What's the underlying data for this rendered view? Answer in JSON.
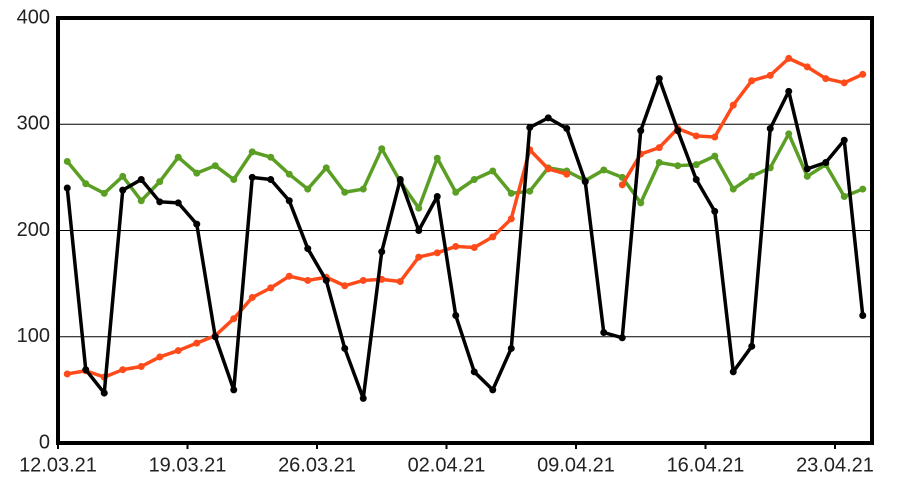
{
  "chart_data": {
    "type": "line",
    "categories": [
      "12.03.21",
      null,
      null,
      null,
      null,
      null,
      null,
      "19.03.21",
      null,
      null,
      null,
      null,
      null,
      null,
      "26.03.21",
      null,
      null,
      null,
      null,
      null,
      null,
      "02.04.21",
      null,
      null,
      null,
      null,
      null,
      null,
      "09.04.21",
      null,
      null,
      null,
      null,
      null,
      null,
      "16.04.21",
      null,
      null,
      null,
      null,
      null,
      null,
      "23.04.21",
      null
    ],
    "series": [
      {
        "color": "#5a9e23",
        "values": [
          265,
          244,
          235,
          251,
          228,
          246,
          269,
          254,
          261,
          248,
          274,
          269,
          253,
          239,
          259,
          236,
          239,
          277,
          246,
          221,
          268,
          236,
          248,
          256,
          235,
          237,
          259,
          256,
          247,
          257,
          250,
          226,
          264,
          261,
          262,
          270,
          239,
          251,
          259,
          291,
          251,
          262,
          232,
          239
        ]
      },
      {
        "color": "#ff4a1a",
        "values": [
          65,
          68,
          62,
          69,
          72,
          81,
          87,
          94,
          101,
          117,
          137,
          146,
          157,
          153,
          156,
          148,
          153,
          154,
          152,
          175,
          179,
          185,
          184,
          194,
          211,
          276,
          258,
          253,
          null,
          null,
          243,
          272,
          278,
          296,
          289,
          288,
          318,
          341,
          346,
          362,
          354,
          343,
          339,
          347
        ]
      },
      {
        "color": "#000000",
        "values": [
          240,
          69,
          47,
          238,
          248,
          227,
          226,
          206,
          100,
          50,
          250,
          248,
          228,
          183,
          153,
          89,
          42,
          180,
          248,
          200,
          232,
          120,
          67,
          50,
          89,
          297,
          306,
          296,
          246,
          104,
          99,
          294,
          343,
          294,
          248,
          218,
          67,
          91,
          296,
          331,
          258,
          264,
          285,
          120
        ]
      }
    ],
    "ylim": [
      0,
      400
    ],
    "yticks": [
      0,
      100,
      200,
      300,
      400
    ],
    "grid": true
  }
}
